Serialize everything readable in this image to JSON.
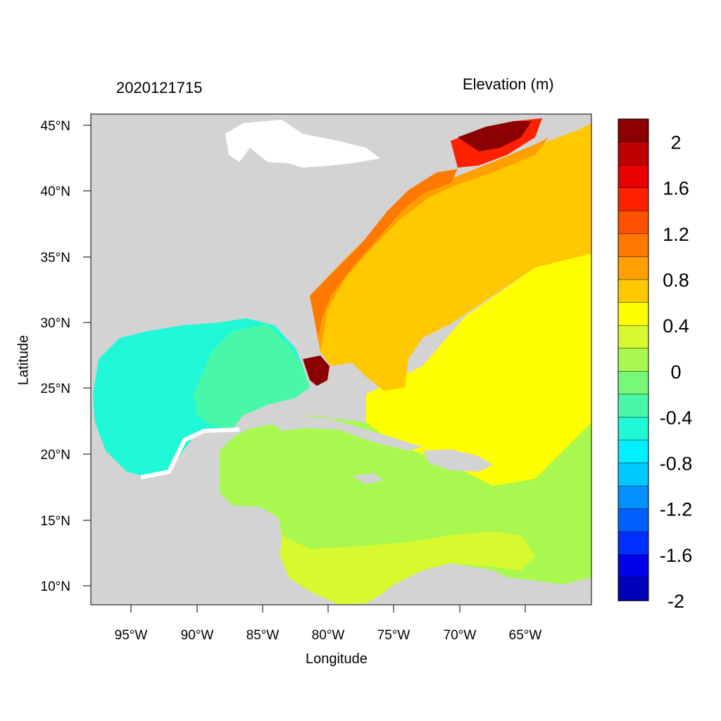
{
  "header": {
    "date_stamp": "2020121715",
    "variable": "Elevation (m)"
  },
  "axes": {
    "xlabel": "Longitude",
    "ylabel": "Latitude",
    "lon_range": [
      -98,
      -60
    ],
    "lat_range": [
      8.5,
      46
    ],
    "x_ticks": [
      "95°W",
      "90°W",
      "85°W",
      "80°W",
      "75°W",
      "70°W",
      "65°W"
    ],
    "y_ticks": [
      "45°N",
      "40°N",
      "35°N",
      "30°N",
      "25°N",
      "20°N",
      "15°N",
      "10°N"
    ]
  },
  "legend": {
    "labels": [
      "2",
      "1.6",
      "1.2",
      "0.8",
      "0.4",
      "0",
      "-0.4",
      "-0.8",
      "-1.2",
      "-1.6",
      "-2"
    ],
    "colors": [
      "#8b0000",
      "#c00000",
      "#e80000",
      "#ff2000",
      "#ff5000",
      "#ff7800",
      "#ffa000",
      "#ffc800",
      "#ffff00",
      "#d8f830",
      "#a8f850",
      "#78f878",
      "#48f8a8",
      "#20f8d8",
      "#00f0ff",
      "#00c8ff",
      "#0090ff",
      "#0060ff",
      "#0030ff",
      "#0000e8",
      "#0000b8"
    ]
  },
  "land_color": "#d3d3d3"
}
